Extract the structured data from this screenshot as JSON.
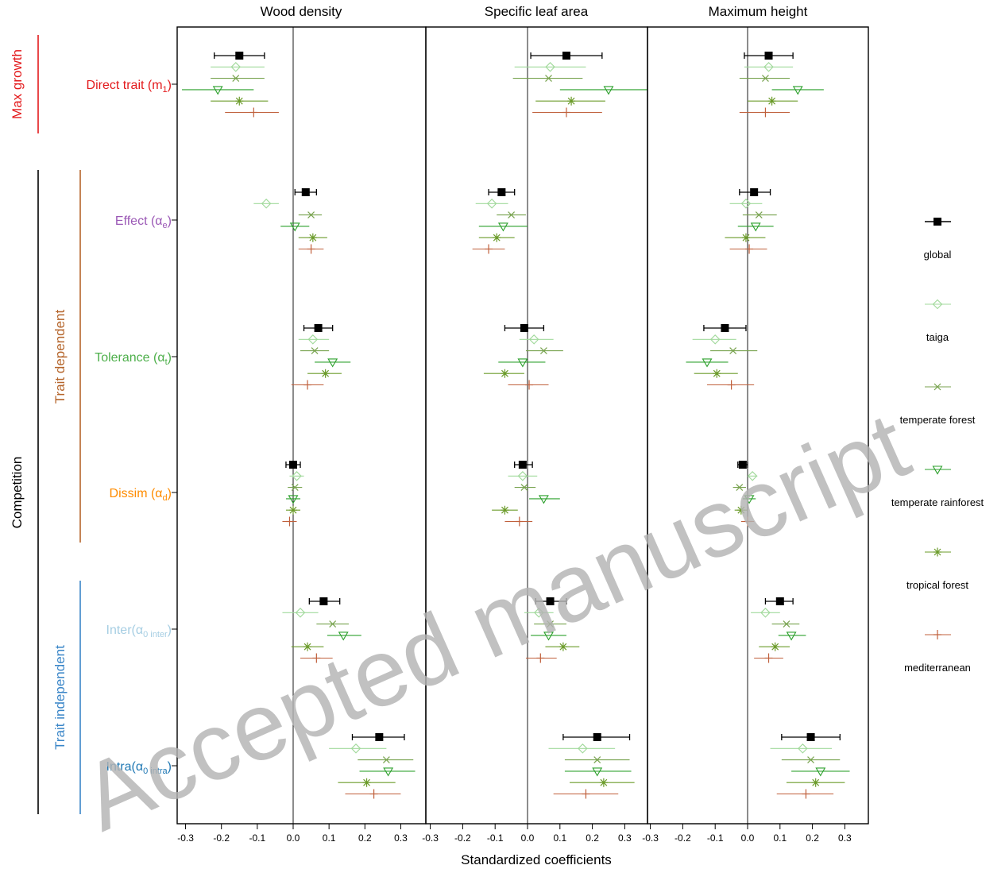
{
  "watermark": "Accepted manuscript",
  "panel_titles": [
    "Wood density",
    "Specific leaf area",
    "Maximum height"
  ],
  "x_axis_label": "Standardized coefficients",
  "tick_labels": [
    "-0.3",
    "-0.2",
    "-0.1",
    "0.0",
    "0.1",
    "0.2",
    "0.3"
  ],
  "row_labels": [
    {
      "main": "Direct trait (m",
      "sub": "1",
      "close": ")",
      "color": "#e31a1c"
    },
    {
      "main": "Effect (α",
      "sub": "e",
      "close": ")",
      "color": "#9b59b6"
    },
    {
      "main": "Tolerance (α",
      "sub": "t",
      "close": ")",
      "color": "#4daf4a"
    },
    {
      "main": "Dissim (α",
      "sub": "d",
      "close": ")",
      "color": "#ff8c00"
    },
    {
      "main": "Inter(α",
      "sub": "0 inter",
      "close": ")",
      "color": "#a6cee3"
    },
    {
      "main": "Intra(α",
      "sub": "0 intra",
      "close": ")",
      "color": "#1f78b4"
    }
  ],
  "group_labels": {
    "max_growth": {
      "text": "Max growth",
      "color": "#e31a1c"
    },
    "competition": {
      "text": "Competition",
      "color": "#000000"
    },
    "trait_dependent": {
      "text": "Trait dependent",
      "color": "#b5652b"
    },
    "trait_independent": {
      "text": "Trait independent",
      "color": "#3a86c8"
    }
  },
  "legend": [
    {
      "label": "global",
      "color": "#000000",
      "symbol": "square"
    },
    {
      "label": "taiga",
      "color": "#a1d99b",
      "symbol": "diamond"
    },
    {
      "label": "temperate forest",
      "color": "#78a34f",
      "symbol": "cross"
    },
    {
      "label": "temperate rainforest",
      "color": "#2ca02c",
      "symbol": "triangle"
    },
    {
      "label": "tropical forest",
      "color": "#6b9b2a",
      "symbol": "asterisk"
    },
    {
      "label": "mediterranean",
      "color": "#c0603c",
      "symbol": "plus"
    }
  ],
  "chart_data": {
    "type": "scatter",
    "xlim": [
      -0.33,
      0.33
    ],
    "ylabel": "",
    "xlabel": "Standardized coefficients",
    "panels": [
      "Wood density",
      "Specific leaf area",
      "Maximum height"
    ],
    "rows": [
      "Direct trait (m1)",
      "Effect (αe)",
      "Tolerance (αt)",
      "Dissim (αd)",
      "Inter(α0 inter)",
      "Intra(α0 intra)"
    ],
    "series_names": [
      "global",
      "taiga",
      "temperate forest",
      "temperate rainforest",
      "tropical forest",
      "mediterranean"
    ],
    "estimates": [
      [
        [
          [
            -0.15,
            -0.22,
            -0.08
          ],
          [
            -0.16,
            -0.23,
            -0.08
          ],
          [
            -0.16,
            -0.23,
            -0.08
          ],
          [
            -0.21,
            -0.31,
            -0.11
          ],
          [
            -0.15,
            -0.23,
            -0.07
          ],
          [
            -0.11,
            -0.19,
            -0.04
          ]
        ],
        [
          [
            0.035,
            0.005,
            0.065
          ],
          [
            -0.075,
            -0.11,
            -0.04
          ],
          [
            0.05,
            0.015,
            0.08
          ],
          [
            0.005,
            -0.035,
            0.045
          ],
          [
            0.055,
            0.015,
            0.095
          ],
          [
            0.05,
            0.015,
            0.085
          ]
        ],
        [
          [
            0.07,
            0.03,
            0.11
          ],
          [
            0.055,
            0.015,
            0.1
          ],
          [
            0.06,
            0.02,
            0.1
          ],
          [
            0.11,
            0.06,
            0.16
          ],
          [
            0.09,
            0.04,
            0.135
          ],
          [
            0.04,
            -0.005,
            0.085
          ]
        ],
        [
          [
            0.0,
            -0.02,
            0.02
          ],
          [
            0.01,
            -0.01,
            0.03
          ],
          [
            0.005,
            -0.015,
            0.025
          ],
          [
            0.0,
            -0.02,
            0.02
          ],
          [
            0.0,
            -0.02,
            0.02
          ],
          [
            -0.01,
            -0.03,
            0.01
          ]
        ],
        [
          [
            0.085,
            0.045,
            0.13
          ],
          [
            0.02,
            -0.03,
            0.07
          ],
          [
            0.11,
            0.065,
            0.155
          ],
          [
            0.14,
            0.095,
            0.19
          ],
          [
            0.04,
            -0.005,
            0.085
          ],
          [
            0.065,
            0.02,
            0.11
          ]
        ],
        [
          [
            0.24,
            0.165,
            0.31
          ],
          [
            0.175,
            0.1,
            0.26
          ],
          [
            0.26,
            0.18,
            0.335
          ],
          [
            0.265,
            0.185,
            0.34
          ],
          [
            0.205,
            0.125,
            0.285
          ],
          [
            0.225,
            0.145,
            0.3
          ]
        ]
      ],
      [
        [
          [
            0.12,
            0.01,
            0.23
          ],
          [
            0.07,
            -0.04,
            0.18
          ],
          [
            0.065,
            -0.045,
            0.17
          ],
          [
            0.25,
            0.1,
            0.37
          ],
          [
            0.135,
            0.025,
            0.24
          ],
          [
            0.12,
            0.015,
            0.23
          ]
        ],
        [
          [
            -0.08,
            -0.12,
            -0.04
          ],
          [
            -0.11,
            -0.16,
            -0.06
          ],
          [
            -0.05,
            -0.095,
            -0.005
          ],
          [
            -0.075,
            -0.15,
            0.0
          ],
          [
            -0.095,
            -0.15,
            -0.04
          ],
          [
            -0.12,
            -0.17,
            -0.07
          ]
        ],
        [
          [
            -0.01,
            -0.07,
            0.05
          ],
          [
            0.02,
            -0.025,
            0.08
          ],
          [
            0.05,
            -0.005,
            0.11
          ],
          [
            -0.015,
            -0.09,
            0.055
          ],
          [
            -0.07,
            -0.135,
            -0.01
          ],
          [
            0.005,
            -0.06,
            0.065
          ]
        ],
        [
          [
            -0.015,
            -0.04,
            0.015
          ],
          [
            -0.015,
            -0.06,
            0.03
          ],
          [
            -0.01,
            -0.04,
            0.025
          ],
          [
            0.05,
            0.005,
            0.1
          ],
          [
            -0.07,
            -0.11,
            -0.03
          ],
          [
            -0.025,
            -0.07,
            0.015
          ]
        ],
        [
          [
            0.07,
            0.025,
            0.12
          ],
          [
            0.035,
            -0.01,
            0.08
          ],
          [
            0.07,
            0.02,
            0.12
          ],
          [
            0.065,
            0.01,
            0.12
          ],
          [
            0.11,
            0.055,
            0.16
          ],
          [
            0.04,
            -0.005,
            0.09
          ]
        ],
        [
          [
            0.215,
            0.11,
            0.315
          ],
          [
            0.17,
            0.065,
            0.27
          ],
          [
            0.215,
            0.115,
            0.315
          ],
          [
            0.215,
            0.115,
            0.32
          ],
          [
            0.235,
            0.13,
            0.33
          ],
          [
            0.18,
            0.08,
            0.28
          ]
        ]
      ],
      [
        [
          [
            0.065,
            -0.01,
            0.14
          ],
          [
            0.065,
            -0.01,
            0.14
          ],
          [
            0.055,
            -0.025,
            0.13
          ],
          [
            0.155,
            0.075,
            0.235
          ],
          [
            0.075,
            0.0,
            0.155
          ],
          [
            0.055,
            -0.025,
            0.13
          ]
        ],
        [
          [
            0.02,
            -0.025,
            0.07
          ],
          [
            -0.005,
            -0.055,
            0.045
          ],
          [
            0.035,
            -0.015,
            0.09
          ],
          [
            0.025,
            -0.03,
            0.08
          ],
          [
            -0.005,
            -0.07,
            0.055
          ],
          [
            0.005,
            -0.055,
            0.06
          ]
        ],
        [
          [
            -0.07,
            -0.135,
            -0.005
          ],
          [
            -0.1,
            -0.17,
            -0.035
          ],
          [
            -0.045,
            -0.115,
            0.03
          ],
          [
            -0.125,
            -0.19,
            -0.06
          ],
          [
            -0.095,
            -0.165,
            -0.03
          ],
          [
            -0.05,
            -0.125,
            0.02
          ]
        ],
        [
          [
            -0.015,
            -0.03,
            0.0
          ],
          [
            0.015,
            0.0,
            0.03
          ],
          [
            -0.025,
            -0.045,
            -0.005
          ],
          [
            0.005,
            -0.015,
            0.025
          ],
          [
            -0.02,
            -0.04,
            0.0
          ],
          [
            0.0,
            -0.02,
            0.02
          ]
        ],
        [
          [
            0.1,
            0.055,
            0.14
          ],
          [
            0.055,
            0.01,
            0.1
          ],
          [
            0.12,
            0.075,
            0.16
          ],
          [
            0.135,
            0.095,
            0.18
          ],
          [
            0.085,
            0.035,
            0.13
          ],
          [
            0.065,
            0.02,
            0.11
          ]
        ],
        [
          [
            0.195,
            0.105,
            0.285
          ],
          [
            0.17,
            0.07,
            0.26
          ],
          [
            0.195,
            0.105,
            0.285
          ],
          [
            0.225,
            0.135,
            0.315
          ],
          [
            0.21,
            0.12,
            0.3
          ],
          [
            0.18,
            0.09,
            0.265
          ]
        ]
      ]
    ]
  }
}
